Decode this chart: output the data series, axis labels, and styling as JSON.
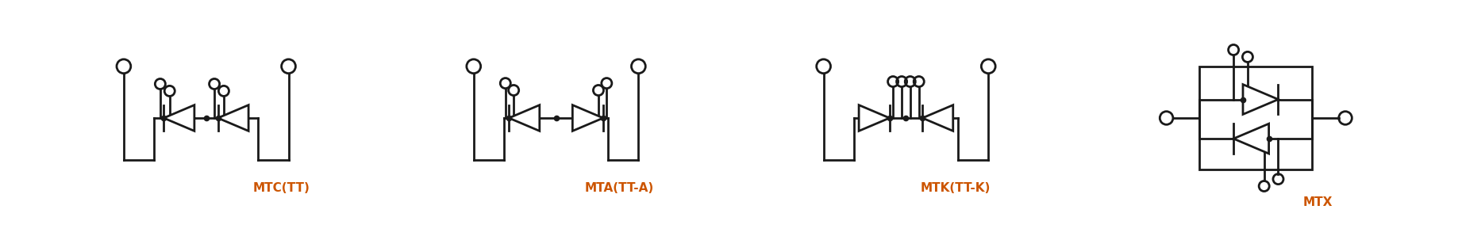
{
  "panels": [
    {
      "label": "MTC(TT)",
      "label_color": "#cc5500"
    },
    {
      "label": "MTA(TT-A)",
      "label_color": "#cc5500"
    },
    {
      "label": "MTK(TT-K)",
      "label_color": "#cc5500"
    },
    {
      "label": "MTX",
      "label_color": "#cc5500"
    }
  ],
  "line_color": "#1a1a1a",
  "line_width": 2.0,
  "bg_color": "#ffffff",
  "border_color": "#666666",
  "font_size": 11
}
